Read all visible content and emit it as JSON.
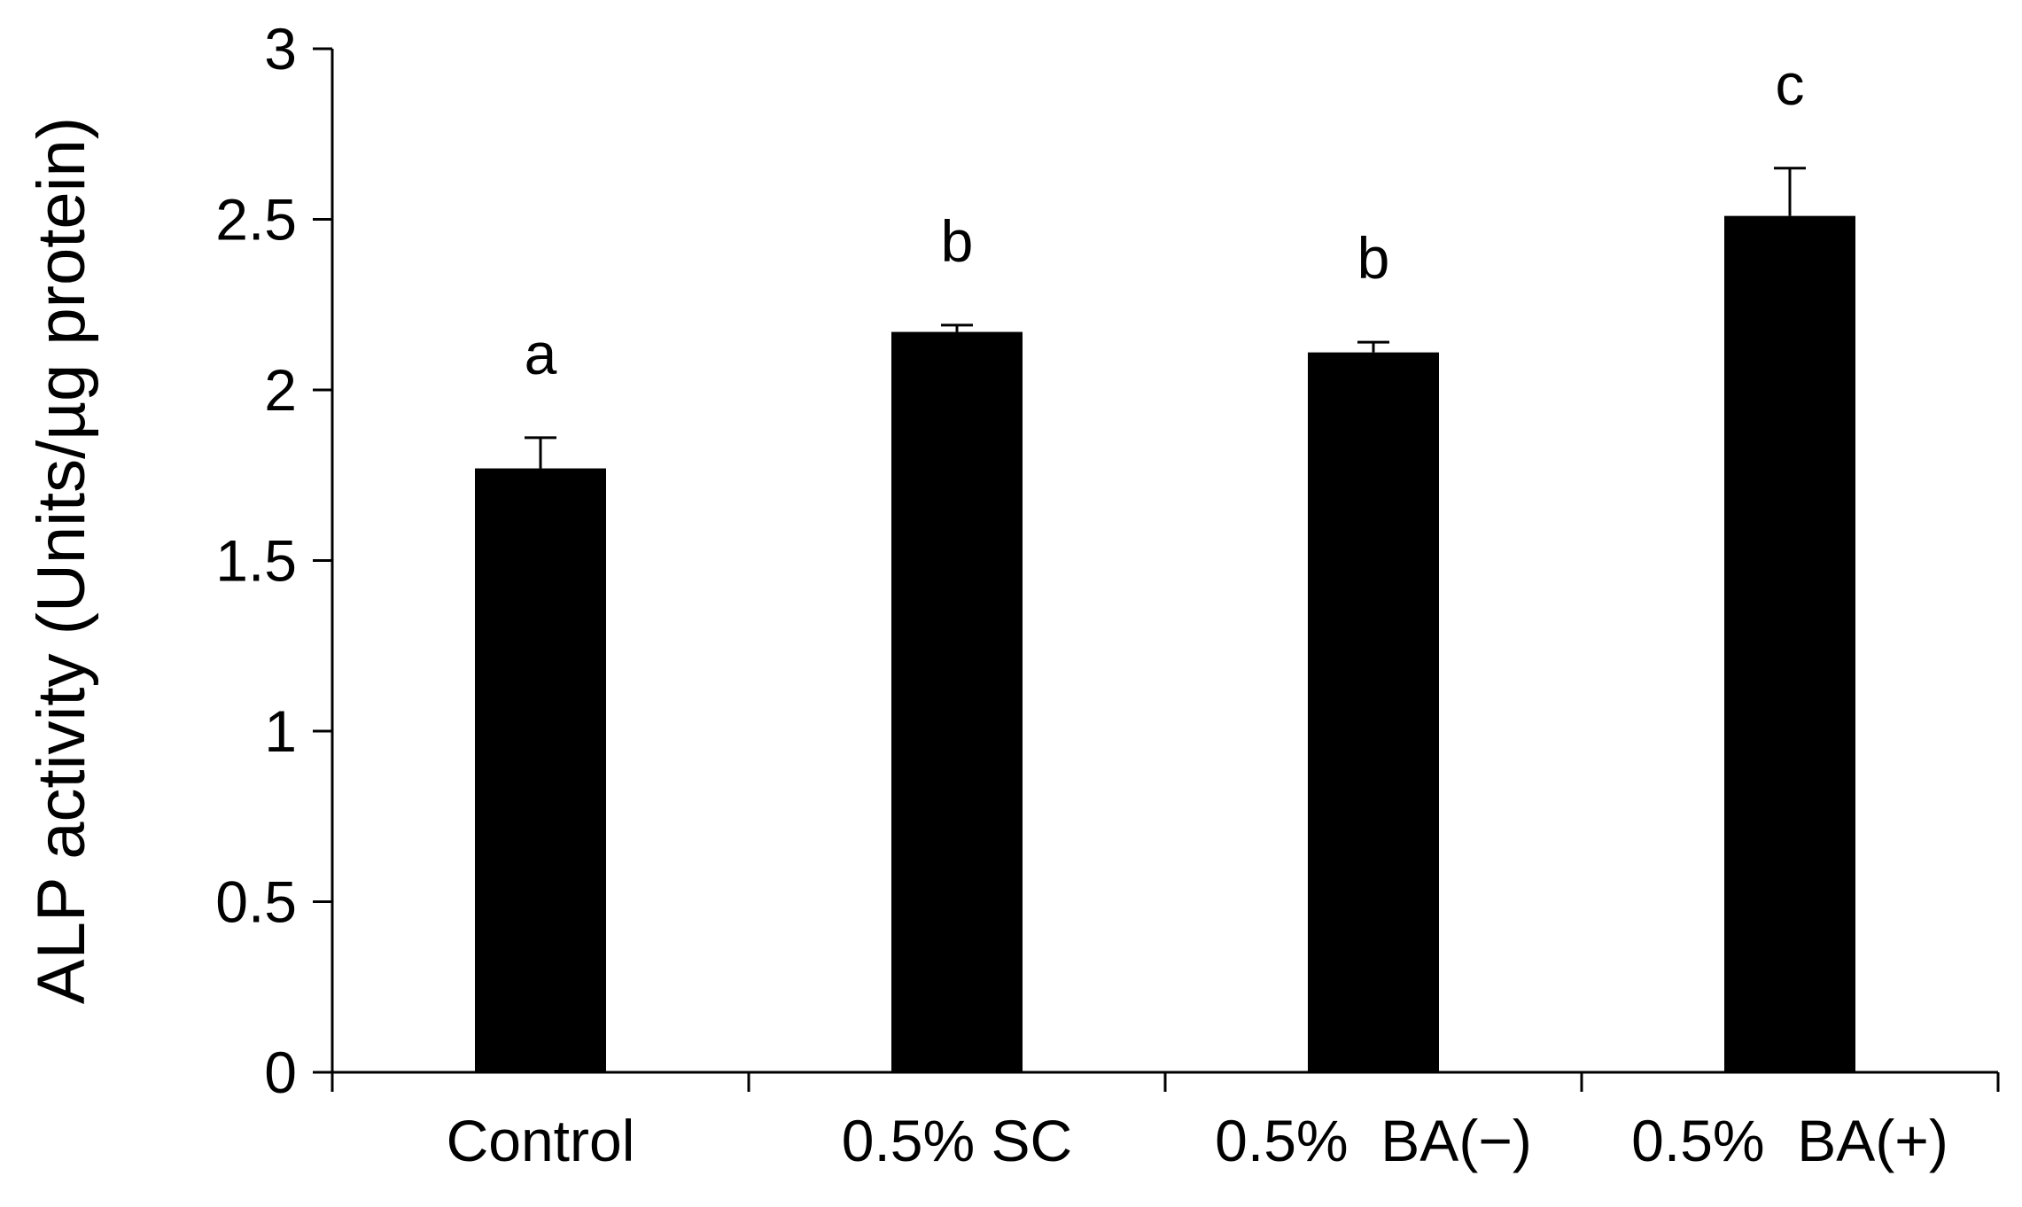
{
  "chart_data": {
    "type": "bar",
    "title": "",
    "xlabel": "",
    "ylabel": "ALP activity (Units/µg protein)",
    "categories": [
      "Control",
      "0.5% SC",
      "0.5%  BA(−)",
      "0.5%  BA(+)"
    ],
    "values": [
      1.77,
      2.17,
      2.11,
      2.51
    ],
    "errors": [
      0.09,
      0.02,
      0.03,
      0.14
    ],
    "significance": [
      "a",
      "b",
      "b",
      "c"
    ],
    "ylim": [
      0,
      3
    ],
    "yticks": [
      0,
      0.5,
      1,
      1.5,
      2,
      2.5,
      3
    ],
    "ytick_labels": [
      "0",
      "0.5",
      "1",
      "1.5",
      "2",
      "2.5",
      "3"
    ],
    "grid": false,
    "bar_color": "#000000",
    "axis_color": "#000000"
  }
}
